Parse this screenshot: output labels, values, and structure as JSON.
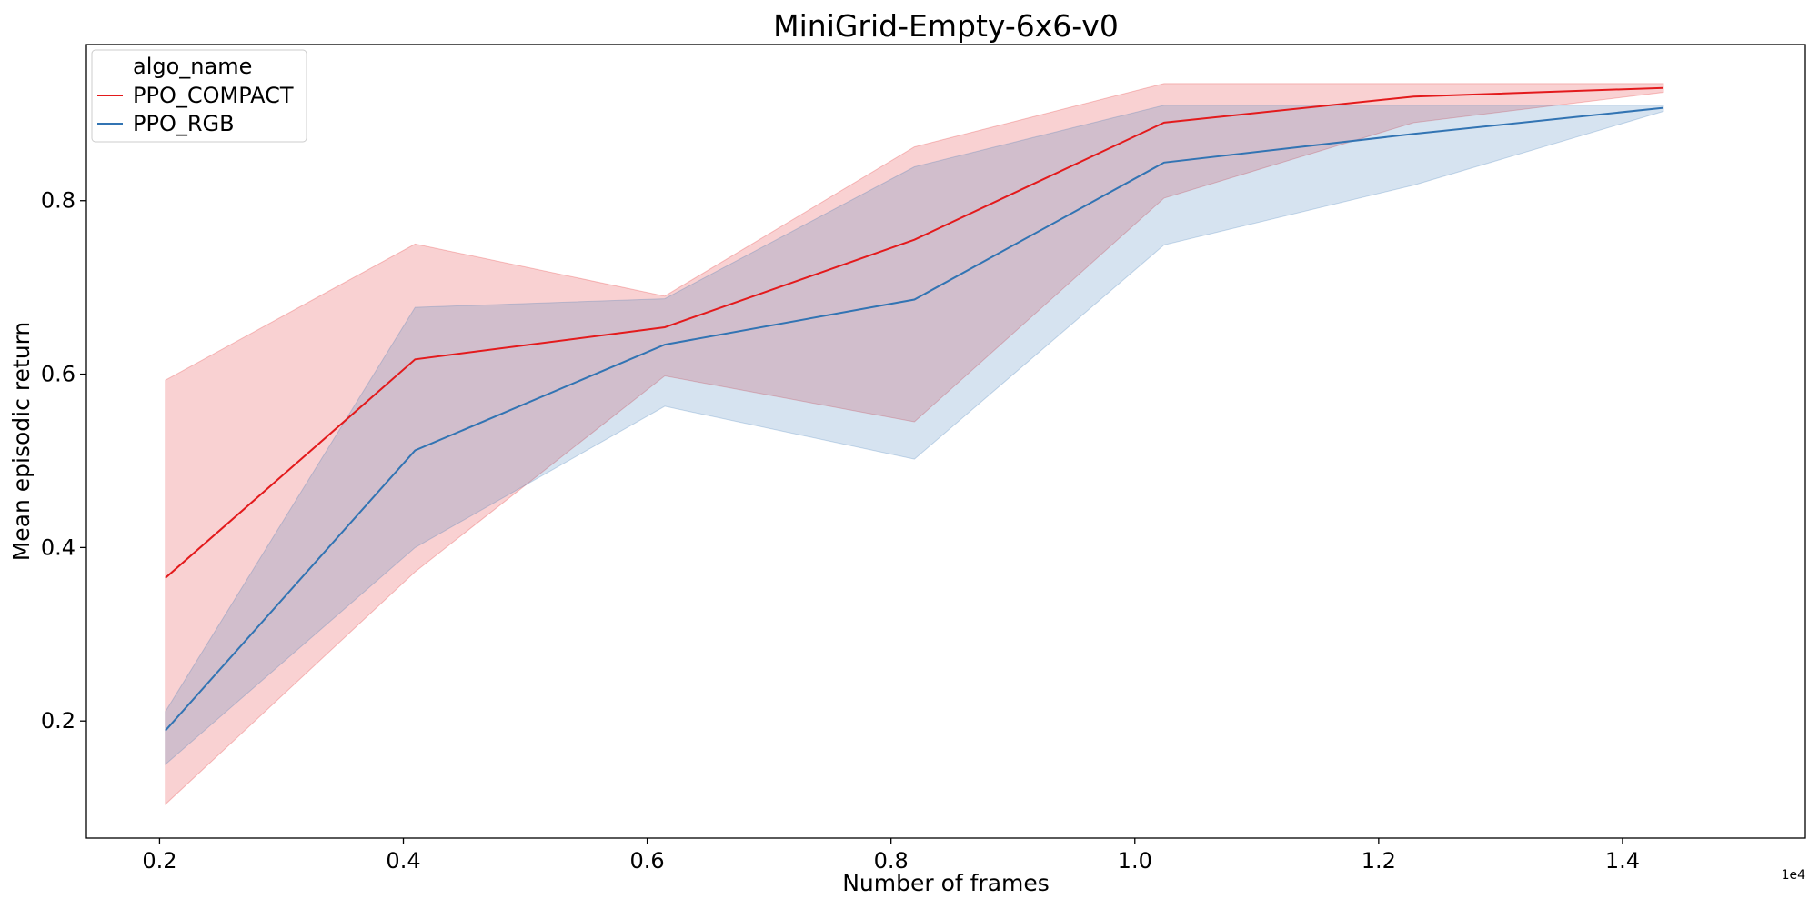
{
  "chart_data": {
    "type": "line",
    "title": "MiniGrid-Empty-6x6-v0",
    "xlabel": "Number of frames",
    "ylabel": "Mean episodic return",
    "x_offset_label": "1e4",
    "xlim": [
      0.14,
      1.55
    ],
    "ylim": [
      0.065,
      0.98
    ],
    "x_ticks": [
      0.2,
      0.4,
      0.6,
      0.8,
      1.0,
      1.2,
      1.4
    ],
    "x_tick_labels": [
      "0.2",
      "0.4",
      "0.6",
      "0.8",
      "1.0",
      "1.2",
      "1.4"
    ],
    "y_ticks": [
      0.2,
      0.4,
      0.6,
      0.8
    ],
    "y_tick_labels": [
      "0.2",
      "0.4",
      "0.6",
      "0.8"
    ],
    "x": [
      0.2048,
      0.4096,
      0.6144,
      0.8192,
      1.024,
      1.2288,
      1.4336
    ],
    "grid": false,
    "legend": {
      "title": "algo_name",
      "placement": "top-left"
    },
    "series": [
      {
        "name": "PPO_COMPACT",
        "color": "#e31a1c",
        "values": [
          0.365,
          0.617,
          0.654,
          0.755,
          0.89,
          0.92,
          0.93
        ],
        "ci_lower": [
          0.104,
          0.372,
          0.598,
          0.545,
          0.803,
          0.89,
          0.925
        ],
        "ci_upper": [
          0.593,
          0.75,
          0.69,
          0.862,
          0.935,
          0.935,
          0.935
        ]
      },
      {
        "name": "PPO_RGB",
        "color": "#3274b3",
        "values": [
          0.189,
          0.512,
          0.634,
          0.686,
          0.844,
          0.877,
          0.907
        ],
        "ci_lower": [
          0.15,
          0.4,
          0.563,
          0.502,
          0.749,
          0.818,
          0.903
        ],
        "ci_upper": [
          0.211,
          0.677,
          0.687,
          0.839,
          0.91,
          0.91,
          0.91
        ]
      }
    ]
  }
}
